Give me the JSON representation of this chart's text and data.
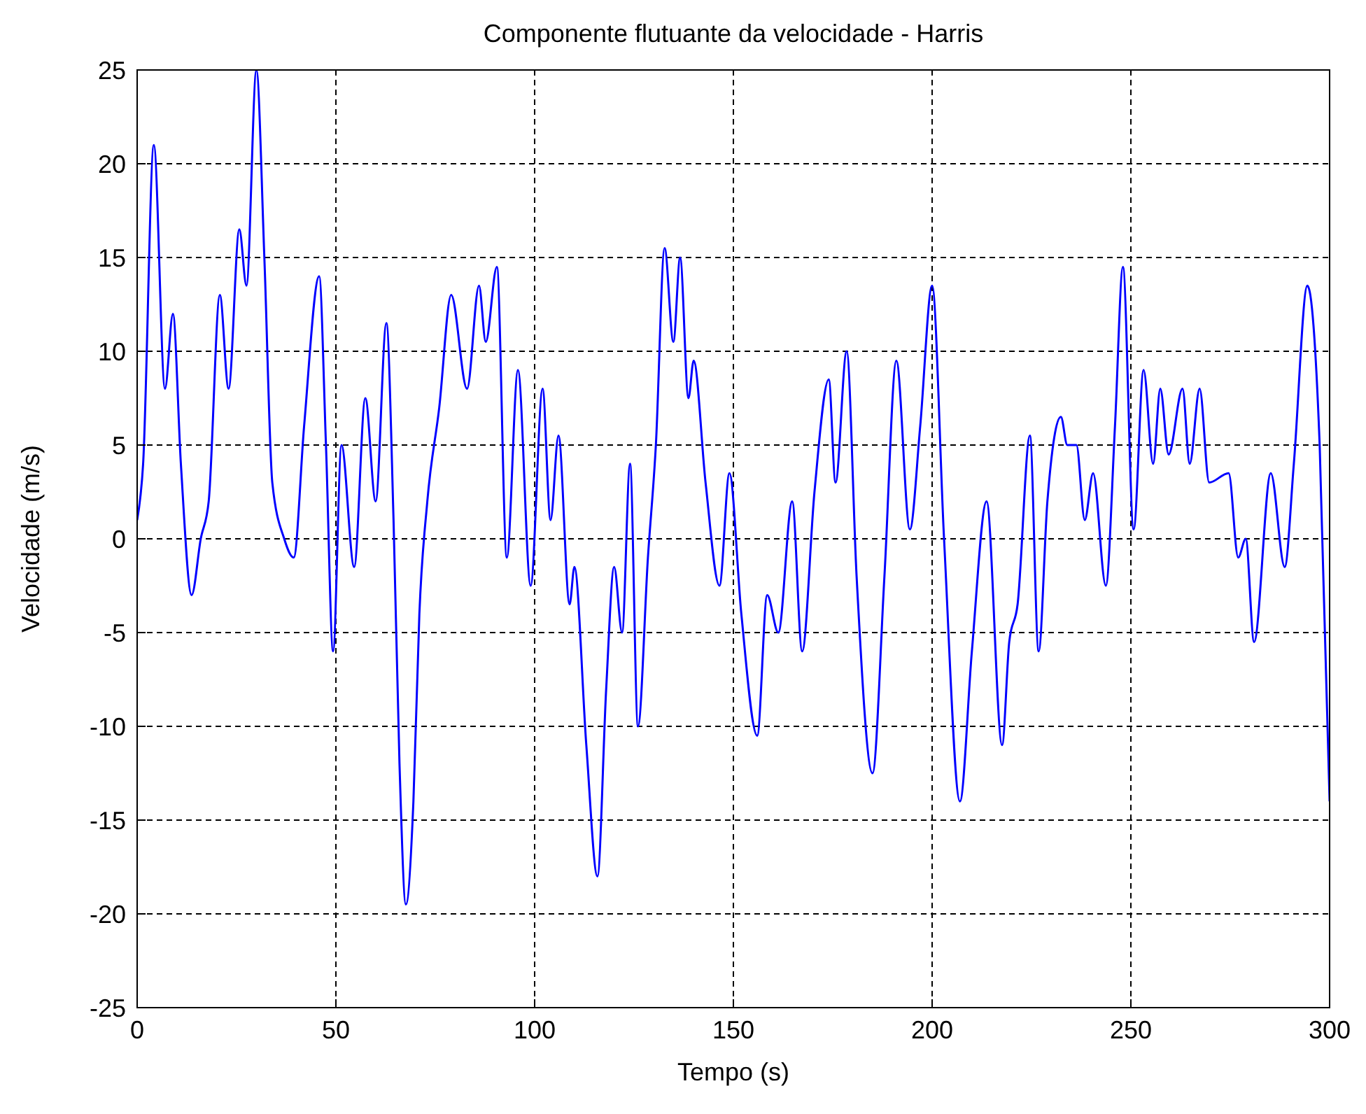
{
  "chart_data": {
    "type": "line",
    "title": "Componente flutuante da velocidade - Harris",
    "xlabel": "Tempo (s)",
    "ylabel": "Velocidade (m/s)",
    "xlim": [
      0,
      300
    ],
    "ylim": [
      -25,
      25
    ],
    "xticks": [
      0,
      50,
      100,
      150,
      200,
      250,
      300
    ],
    "yticks": [
      -25,
      -20,
      -15,
      -10,
      -5,
      0,
      5,
      10,
      15,
      20,
      25
    ],
    "grid": true,
    "series": [
      {
        "color": "#0000ff",
        "x": [
          0,
          1.5,
          4.2,
          7,
          9,
          11,
          13.7,
          16,
          18,
          20.8,
          23,
          25.7,
          27.5,
          30,
          32,
          34,
          37,
          39.4,
          42,
          45.8,
          47.5,
          49.3,
          51.4,
          54.6,
          57.4,
          60,
          62.7,
          64.5,
          66,
          67.6,
          69.5,
          71,
          73,
          76,
          79,
          83,
          86,
          87.7,
          90.5,
          93,
          95.8,
          99,
          102,
          104,
          106,
          108.8,
          110,
          113,
          115.8,
          118,
          120,
          122,
          124,
          126,
          128.5,
          130.5,
          132.7,
          134.9,
          136.6,
          138.7,
          140,
          143,
          146.5,
          149,
          152,
          156,
          158.5,
          161.3,
          164.8,
          167.3,
          170.4,
          174,
          175.7,
          178.5,
          181,
          185,
          188,
          191,
          194.4,
          197,
          200,
          203,
          207,
          210,
          213.7,
          217.6,
          219.4,
          221.5,
          224.6,
          226.8,
          229,
          232.4,
          234,
          236.3,
          238.4,
          240.5,
          243.7,
          246,
          248,
          250.7,
          253.2,
          255.6,
          257.4,
          259.5,
          263,
          264.8,
          267.3,
          269.7,
          274.6,
          277,
          278.9,
          281,
          285.2,
          288.7,
          291,
          294.4,
          297.5,
          300
        ],
        "values": [
          1,
          4,
          21,
          8,
          12,
          4,
          -3,
          0,
          2,
          13,
          8,
          16.5,
          13.5,
          25,
          15,
          3,
          0,
          -1,
          6,
          14,
          5,
          -6,
          5,
          -1.5,
          7.5,
          2,
          11.5,
          1,
          -12,
          -19.5,
          -14,
          -4,
          2,
          7,
          13,
          8,
          13.5,
          10.5,
          14.5,
          -1,
          9,
          -2.5,
          8,
          1,
          5.5,
          -3.5,
          -1.5,
          -11,
          -18,
          -8,
          -1.5,
          -5,
          4,
          -10,
          -1,
          5,
          15.5,
          10.5,
          15,
          7.5,
          9.5,
          3,
          -2.5,
          3.5,
          -4,
          -10.5,
          -3,
          -5,
          2,
          -6,
          2.5,
          8.5,
          3,
          10,
          -2,
          -12.5,
          -2,
          9.5,
          0.5,
          6,
          13.5,
          0,
          -14,
          -6,
          2,
          -11,
          -5.5,
          -3.5,
          5.5,
          -6,
          2,
          6.5,
          5,
          5,
          1,
          3.5,
          -2.5,
          6,
          14.5,
          0.5,
          9,
          4,
          8,
          4.5,
          8,
          4,
          8,
          3,
          3.5,
          -1,
          0,
          -5.5,
          3.5,
          -1.5,
          4,
          13.5,
          5,
          -14
        ]
      }
    ]
  }
}
